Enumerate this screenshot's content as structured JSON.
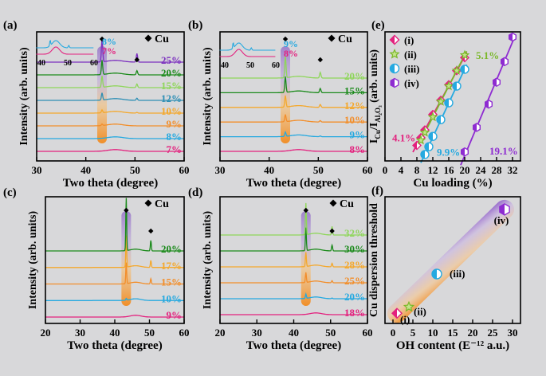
{
  "figure": {
    "marker_label": "Cu",
    "diamond_symbol": "◆"
  },
  "chart_data": [
    {
      "id": "a",
      "panel_label": "(a)",
      "type": "line",
      "title": "",
      "xlabel": "Two theta (degree)",
      "ylabel": "Intensity (arb. units)",
      "xlim": [
        30,
        60
      ],
      "xticks": [
        30,
        40,
        50,
        60
      ],
      "peak_positions": [
        43.3,
        50.4
      ],
      "series": [
        {
          "name": "7%",
          "color": "#e3217e",
          "peak_heights": [
            0.0,
            0.0
          ]
        },
        {
          "name": "8%",
          "color": "#25a9e0",
          "peak_heights": [
            0.0,
            0.0
          ]
        },
        {
          "name": "9%",
          "color": "#f28e2b",
          "peak_heights": [
            0.1,
            0.0
          ]
        },
        {
          "name": "10%",
          "color": "#f4a82c",
          "peak_heights": [
            0.2,
            0.05
          ]
        },
        {
          "name": "12%",
          "color": "#2e8fb5",
          "peak_heights": [
            0.5,
            0.15
          ]
        },
        {
          "name": "15%",
          "color": "#8fd65b",
          "peak_heights": [
            0.8,
            0.25
          ]
        },
        {
          "name": "20%",
          "color": "#1b8a1b",
          "peak_heights": [
            1.0,
            0.3
          ]
        },
        {
          "name": "25%",
          "color": "#7b2fbf",
          "peak_heights": [
            1.6,
            0.6
          ]
        }
      ],
      "inset": {
        "xticks": [
          40,
          50,
          60
        ],
        "series": [
          {
            "name": "8%",
            "color": "#25a9e0"
          },
          {
            "name": "7%",
            "color": "#e3217e"
          }
        ]
      }
    },
    {
      "id": "b",
      "panel_label": "(b)",
      "type": "line",
      "title": "",
      "xlabel": "Two theta (degree)",
      "ylabel": "Intensity (arb. units)",
      "xlim": [
        30,
        60
      ],
      "xticks": [
        30,
        40,
        50,
        60
      ],
      "peak_positions": [
        43.3,
        50.4
      ],
      "series": [
        {
          "name": "8%",
          "color": "#e3217e",
          "peak_heights": [
            0.0,
            0.0
          ]
        },
        {
          "name": "9%",
          "color": "#25a9e0",
          "peak_heights": [
            0.3,
            0.05
          ]
        },
        {
          "name": "10%",
          "color": "#f28e2b",
          "peak_heights": [
            0.5,
            0.1
          ]
        },
        {
          "name": "12%",
          "color": "#f4a82c",
          "peak_heights": [
            0.8,
            0.2
          ]
        },
        {
          "name": "15%",
          "color": "#1b8a1b",
          "peak_heights": [
            1.1,
            0.3
          ]
        },
        {
          "name": "20%",
          "color": "#8fd65b",
          "peak_heights": [
            1.5,
            0.4
          ]
        }
      ],
      "inset": {
        "xticks": [
          40,
          50,
          60
        ],
        "series": [
          {
            "name": "9%",
            "color": "#25a9e0"
          },
          {
            "name": "8%",
            "color": "#e3217e"
          }
        ]
      }
    },
    {
      "id": "c",
      "panel_label": "(c)",
      "type": "line",
      "title": "",
      "xlabel": "Two theta (degree)",
      "ylabel": "Intensity (arb. units)",
      "xlim": [
        20,
        60
      ],
      "xticks": [
        20,
        30,
        40,
        50,
        60
      ],
      "peak_positions": [
        43.3,
        50.4
      ],
      "series": [
        {
          "name": "9%",
          "color": "#e3217e",
          "peak_heights": [
            0.0,
            0.0
          ]
        },
        {
          "name": "10%",
          "color": "#25a9e0",
          "peak_heights": [
            0.1,
            0.0
          ]
        },
        {
          "name": "15%",
          "color": "#f28e2b",
          "peak_heights": [
            1.2,
            0.3
          ]
        },
        {
          "name": "17%",
          "color": "#f4a82c",
          "peak_heights": [
            1.8,
            0.4
          ]
        },
        {
          "name": "20%",
          "color": "#1b8a1b",
          "peak_heights": [
            3.0,
            0.6
          ]
        }
      ]
    },
    {
      "id": "d",
      "panel_label": "(d)",
      "type": "line",
      "title": "",
      "xlabel": "Two theta (degree)",
      "ylabel": "Intensity (arb. units)",
      "xlim": [
        20,
        60
      ],
      "xticks": [
        20,
        30,
        40,
        50,
        60
      ],
      "peak_positions": [
        43.3,
        50.4
      ],
      "series": [
        {
          "name": "18%",
          "color": "#e3217e",
          "peak_heights": [
            0.0,
            0.0
          ]
        },
        {
          "name": "20%",
          "color": "#25a9e0",
          "peak_heights": [
            0.3,
            0.05
          ]
        },
        {
          "name": "25%",
          "color": "#f28e2b",
          "peak_heights": [
            0.7,
            0.15
          ]
        },
        {
          "name": "28%",
          "color": "#f4a82c",
          "peak_heights": [
            1.0,
            0.25
          ]
        },
        {
          "name": "30%",
          "color": "#1b8a1b",
          "peak_heights": [
            1.6,
            0.4
          ]
        },
        {
          "name": "32%",
          "color": "#8fd65b",
          "peak_heights": [
            2.2,
            0.6
          ]
        }
      ]
    },
    {
      "id": "e",
      "panel_label": "(e)",
      "type": "scatter",
      "title": "",
      "xlabel": "Cu loading (%)",
      "ylabel_main": "I",
      "ylabel_sub1": "Cu",
      "ylabel_mid": "/I",
      "ylabel_sub2": "Al₂O₃",
      "ylabel_tail": "(arb. units)",
      "xlim": [
        0,
        34
      ],
      "xticks": [
        0,
        4,
        8,
        12,
        16,
        20,
        24,
        28,
        32
      ],
      "ylim": [
        0,
        10
      ],
      "legend": {
        "position": "top-left"
      },
      "annotations": [
        {
          "text": "4.1%",
          "color": "#e3217e",
          "x": 1.8,
          "y": 1.5
        },
        {
          "text": "5.1%",
          "color": "#7ab829",
          "x": 22.8,
          "y": 7.9
        },
        {
          "text": "9.9%",
          "color": "#25a9e0",
          "x": 13.0,
          "y": 0.4
        },
        {
          "text": "19.1%",
          "color": "#8e2bd1",
          "x": 26.2,
          "y": 0.5
        }
      ],
      "series": [
        {
          "name": "(i)",
          "color": "#e3217e",
          "marker": "diamond",
          "x": [
            8,
            9,
            10,
            12,
            14,
            16,
            18,
            20
          ],
          "y": [
            1.2,
            1.8,
            2.4,
            3.6,
            4.7,
            5.9,
            7.0,
            8.0
          ]
        },
        {
          "name": "(ii)",
          "color": "#7ab829",
          "marker": "star",
          "x": [
            9,
            10,
            12,
            14,
            16,
            18,
            20
          ],
          "y": [
            1.6,
            2.2,
            3.4,
            4.6,
            5.8,
            7.0,
            8.2
          ]
        },
        {
          "name": "(iii)",
          "color": "#25a9e0",
          "marker": "circle",
          "x": [
            10,
            11,
            12,
            14,
            16,
            18,
            20
          ],
          "y": [
            0.5,
            1.1,
            1.9,
            3.2,
            4.5,
            5.8,
            7.1
          ]
        },
        {
          "name": "(iv)",
          "color": "#8e2bd1",
          "marker": "hexagon",
          "x": [
            20,
            23,
            26,
            28,
            30,
            32
          ],
          "y": [
            0.7,
            2.6,
            4.4,
            6.1,
            7.7,
            9.6
          ]
        }
      ]
    },
    {
      "id": "f",
      "panel_label": "(f)",
      "type": "scatter",
      "title": "",
      "xlabel": "OH content (E⁻¹² a.u.)",
      "ylabel": "Cu dispersion threshold",
      "xlim": [
        -2,
        32
      ],
      "xticks": [
        0,
        5,
        10,
        15,
        20,
        25,
        30
      ],
      "ylim": [
        0,
        10
      ],
      "points": [
        {
          "label": "(i)",
          "color": "#e3217e",
          "marker": "diamond",
          "x": 1.0,
          "y": 0.8
        },
        {
          "label": "(ii)",
          "color": "#7ab829",
          "marker": "star",
          "x": 4.0,
          "y": 1.3
        },
        {
          "label": "(iii)",
          "color": "#25a9e0",
          "marker": "circle",
          "x": 11.0,
          "y": 3.9
        },
        {
          "label": "(iv)",
          "color": "#8e2bd1",
          "marker": "hexagon",
          "x": 28.0,
          "y": 9.0
        }
      ]
    }
  ]
}
